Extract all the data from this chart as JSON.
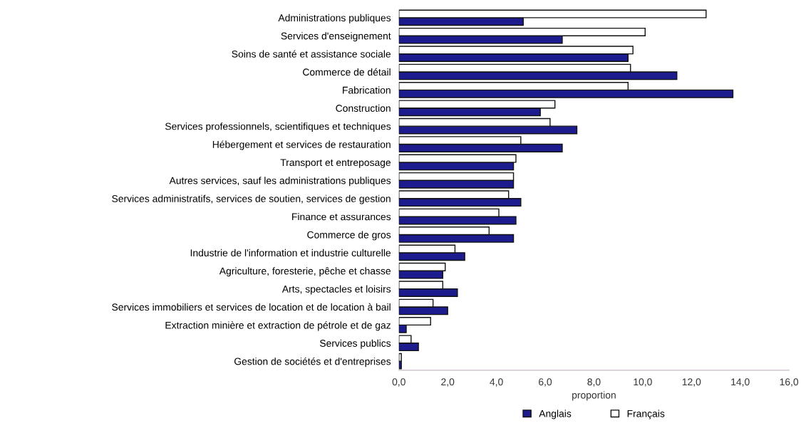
{
  "chart_data": {
    "type": "bar",
    "orientation": "horizontal",
    "xlabel": "proportion",
    "categories": [
      "Administrations publiques",
      "Services d'enseignement",
      "Soins de santé et assistance sociale",
      "Commerce de détail",
      "Fabrication",
      "Construction",
      "Services professionnels, scientifiques et techniques",
      "Hébergement et services de restauration",
      "Transport et entreposage",
      "Autres services, sauf les administrations publiques",
      "Services administratifs, services de soutien, services de gestion",
      "Finance et assurances",
      "Commerce de gros",
      "Industrie de l'information et industrie culturelle",
      "Agriculture, foresterie, pêche et chasse",
      "Arts, spectacles et loisirs",
      "Services immobiliers et services de location et de location à bail",
      "Extraction minière et extraction de pétrole et de gaz",
      "Services publics",
      "Gestion de sociétés et d'entreprises"
    ],
    "series": [
      {
        "name": "Anglais",
        "color": "#1c1c8e",
        "values": [
          5.1,
          6.7,
          9.4,
          11.4,
          13.7,
          5.8,
          7.3,
          6.7,
          4.7,
          4.7,
          5.0,
          4.8,
          4.7,
          2.7,
          1.8,
          2.4,
          2.0,
          0.3,
          0.8,
          0.1
        ]
      },
      {
        "name": "Français",
        "color": "#ffffff",
        "values": [
          12.6,
          10.1,
          9.6,
          9.5,
          9.4,
          6.4,
          6.2,
          5.0,
          4.8,
          4.7,
          4.5,
          4.1,
          3.7,
          2.3,
          1.9,
          1.8,
          1.4,
          1.3,
          0.5,
          0.1
        ]
      }
    ],
    "xlim": [
      0,
      16
    ],
    "xticks": [
      {
        "value": 0,
        "label": "0,0"
      },
      {
        "value": 2,
        "label": "2,0"
      },
      {
        "value": 4,
        "label": "4,0"
      },
      {
        "value": 6,
        "label": "6,0"
      },
      {
        "value": 8,
        "label": "8,0"
      },
      {
        "value": 10,
        "label": "10,0"
      },
      {
        "value": 12,
        "label": "12,0"
      },
      {
        "value": 14,
        "label": "14,0"
      },
      {
        "value": 16,
        "label": "16,0"
      }
    ],
    "grid": false,
    "legend": "bottom"
  }
}
